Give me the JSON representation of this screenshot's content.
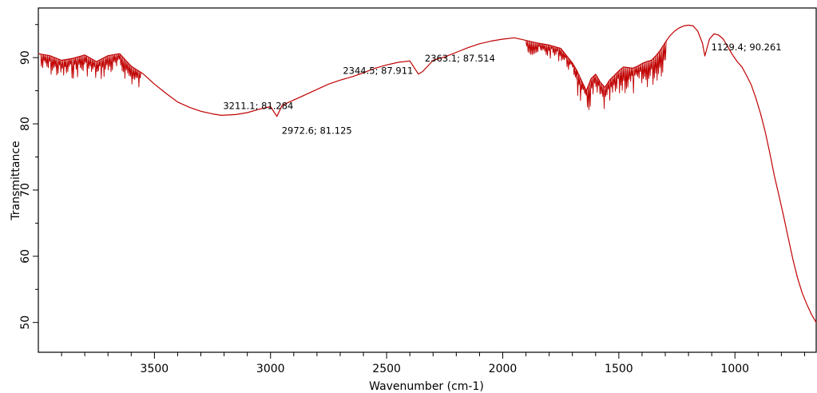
{
  "chart_data": {
    "type": "line",
    "xlabel": "Wavenumber (cm-1)",
    "ylabel": "Transmittance",
    "xlim": [
      4000,
      650
    ],
    "ylim": [
      45.5,
      97.5
    ],
    "x_reversed": true,
    "grid": false,
    "legend": "none",
    "line_color": "#c00000",
    "xticks": [
      {
        "value": 3500,
        "label": "3500"
      },
      {
        "value": 3000,
        "label": "3000"
      },
      {
        "value": 2500,
        "label": "2500"
      },
      {
        "value": 2000,
        "label": "2000"
      },
      {
        "value": 1500,
        "label": "1500"
      },
      {
        "value": 1000,
        "label": "1000"
      }
    ],
    "yticks": [
      {
        "value": 50,
        "label": "50"
      },
      {
        "value": 60,
        "label": "60"
      },
      {
        "value": 70,
        "label": "70"
      },
      {
        "value": 80,
        "label": "80"
      },
      {
        "value": 90,
        "label": "90"
      }
    ],
    "annotations": [
      {
        "x": 3211.1,
        "y": 81.284,
        "text": "3211.1; 81.284"
      },
      {
        "x": 2972.6,
        "y": 81.125,
        "text": "2972.6; 81.125"
      },
      {
        "x": 2344.5,
        "y": 87.911,
        "text": "2344.5; 87.911"
      },
      {
        "x": 2363.1,
        "y": 87.514,
        "text": "2363.1; 87.514"
      },
      {
        "x": 1129.4,
        "y": 90.261,
        "text": "1129.4; 90.261"
      }
    ],
    "series": [
      {
        "x": [
          4000,
          3950,
          3900,
          3850,
          3800,
          3750,
          3700,
          3650,
          3600,
          3550,
          3500,
          3450,
          3400,
          3350,
          3300,
          3250,
          3211.1,
          3150,
          3100,
          3050,
          3000,
          2972.6,
          2950,
          2900,
          2850,
          2800,
          2750,
          2700,
          2650,
          2600,
          2550,
          2500,
          2450,
          2400,
          2363.1,
          2344.5,
          2300,
          2250,
          2200,
          2150,
          2100,
          2050,
          2000,
          1950,
          1900,
          1850,
          1800,
          1750,
          1700,
          1680,
          1660,
          1640,
          1620,
          1600,
          1580,
          1560,
          1540,
          1520,
          1500,
          1480,
          1460,
          1440,
          1420,
          1400,
          1380,
          1360,
          1340,
          1320,
          1300,
          1280,
          1260,
          1240,
          1220,
          1200,
          1180,
          1160,
          1140,
          1129.4,
          1110,
          1090,
          1070,
          1050,
          1030,
          1010,
          990,
          970,
          950,
          930,
          910,
          890,
          870,
          850,
          830,
          810,
          790,
          770,
          750,
          730,
          710,
          690,
          670,
          650
        ],
        "y": [
          90.6,
          90.3,
          89.6,
          89.9,
          90.4,
          89.4,
          90.3,
          90.6,
          88.7,
          87.6,
          86.0,
          84.6,
          83.3,
          82.5,
          81.9,
          81.5,
          81.284,
          81.4,
          81.7,
          82.2,
          82.6,
          81.125,
          82.8,
          83.6,
          84.4,
          85.2,
          86.0,
          86.6,
          87.1,
          87.7,
          88.4,
          88.9,
          89.3,
          89.5,
          87.514,
          87.911,
          89.6,
          90.1,
          90.8,
          91.5,
          92.1,
          92.5,
          92.8,
          93.0,
          92.6,
          92.2,
          91.9,
          91.4,
          89.2,
          88.0,
          86.5,
          85.0,
          86.8,
          87.5,
          86.3,
          85.5,
          86.6,
          87.3,
          88.0,
          88.6,
          88.5,
          88.4,
          88.7,
          89.1,
          89.4,
          89.6,
          90.3,
          91.2,
          92.3,
          93.3,
          94.0,
          94.5,
          94.8,
          94.9,
          94.8,
          94.0,
          92.2,
          90.261,
          92.8,
          93.6,
          93.4,
          92.8,
          91.6,
          90.4,
          89.4,
          88.6,
          87.3,
          85.9,
          83.9,
          81.6,
          78.9,
          75.6,
          72.1,
          69.1,
          66.0,
          62.7,
          59.5,
          56.7,
          54.4,
          52.7,
          51.2,
          50.0
        ]
      }
    ]
  }
}
